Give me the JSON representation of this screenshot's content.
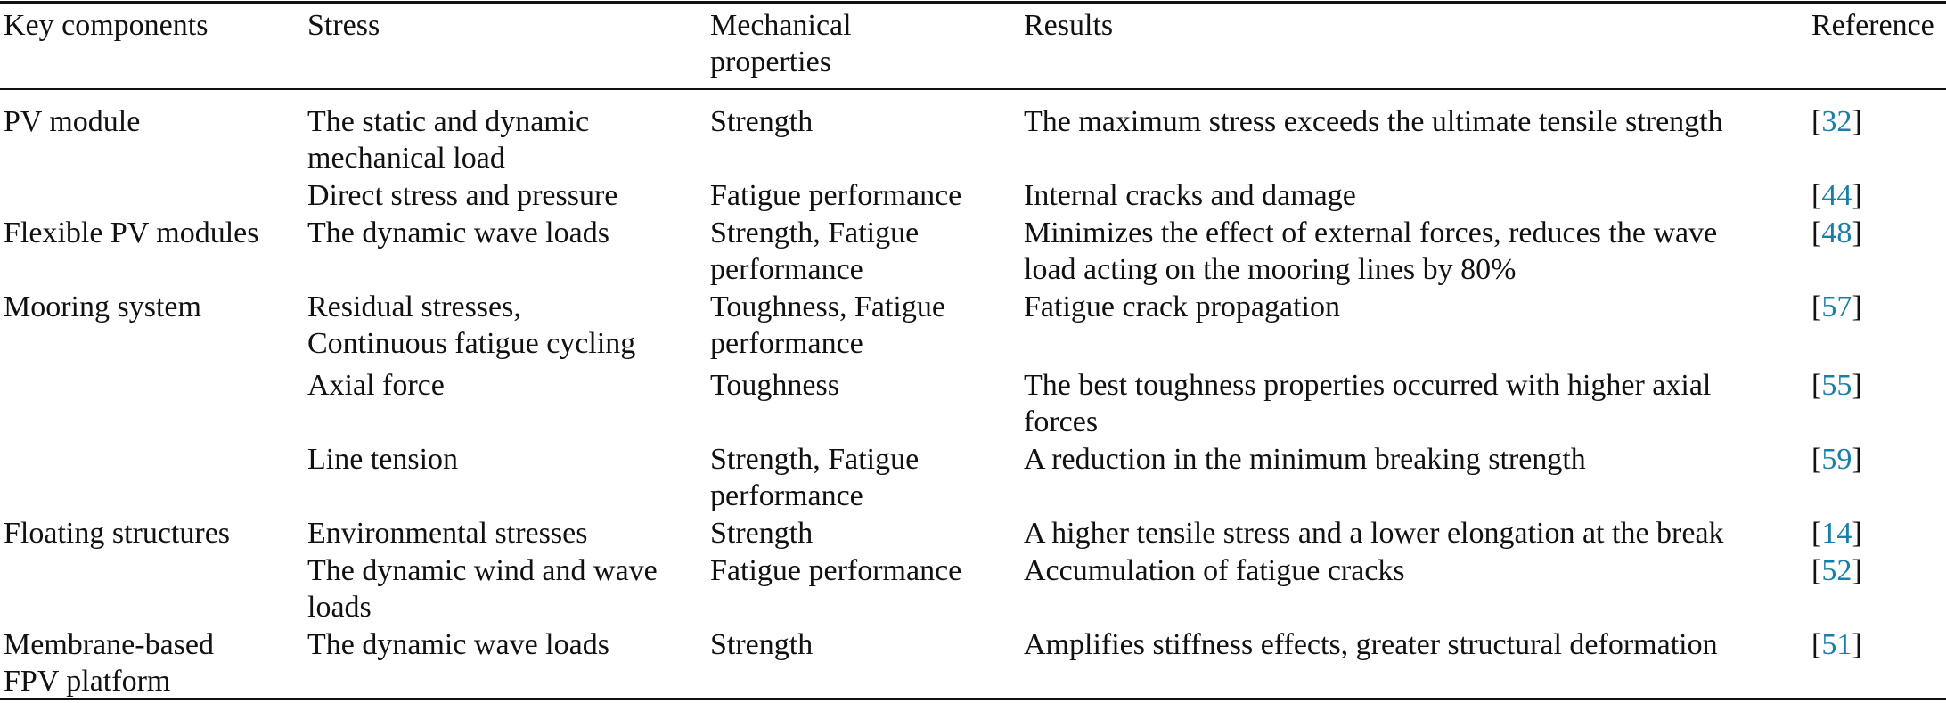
{
  "table": {
    "headers": [
      [
        "Key components"
      ],
      [
        "Stress"
      ],
      [
        "Mechanical",
        "properties"
      ],
      [
        "Results"
      ],
      [
        "Reference"
      ]
    ],
    "rows": [
      {
        "component": [
          "PV module"
        ],
        "stress": [
          "The static and dynamic",
          "mechanical load"
        ],
        "properties": [
          "Strength"
        ],
        "results": [
          "The maximum stress exceeds the ultimate tensile strength"
        ],
        "ref": "32"
      },
      {
        "component": [],
        "stress": [
          "Direct stress and pressure"
        ],
        "properties": [
          "Fatigue performance"
        ],
        "results": [
          "Internal cracks and damage"
        ],
        "ref": "44"
      },
      {
        "component": [
          "Flexible PV modules"
        ],
        "stress": [
          "The dynamic wave loads"
        ],
        "properties": [
          "Strength, Fatigue",
          "performance"
        ],
        "results": [
          "Minimizes the effect of external forces, reduces the wave",
          "load acting on the mooring lines by 80%"
        ],
        "ref": "48"
      },
      {
        "component": [
          "Mooring system"
        ],
        "stress": [
          "Residual stresses,",
          "Continuous fatigue cycling"
        ],
        "properties": [
          "Toughness, Fatigue",
          "performance"
        ],
        "results": [
          "Fatigue crack propagation"
        ],
        "ref": "57"
      },
      {
        "component": [],
        "stress": [
          "Axial force"
        ],
        "properties": [
          "Toughness"
        ],
        "results": [
          "The best toughness properties occurred with higher axial",
          "forces"
        ],
        "ref": "55"
      },
      {
        "component": [],
        "stress": [
          "Line tension"
        ],
        "properties": [
          "Strength, Fatigue",
          "performance"
        ],
        "results": [
          "A reduction in the minimum breaking strength"
        ],
        "ref": "59"
      },
      {
        "component": [
          "Floating structures"
        ],
        "stress": [
          "Environmental stresses"
        ],
        "properties": [
          "Strength"
        ],
        "results": [
          "A higher tensile stress and a lower elongation at the break"
        ],
        "ref": "14"
      },
      {
        "component": [],
        "stress": [
          "The dynamic wind and wave",
          "loads"
        ],
        "properties": [
          "Fatigue performance"
        ],
        "results": [
          "Accumulation of fatigue cracks"
        ],
        "ref": "52"
      },
      {
        "component": [
          "Membrane-based",
          "FPV platform"
        ],
        "stress": [
          "The dynamic wave loads"
        ],
        "properties": [
          "Strength"
        ],
        "results": [
          "Amplifies stiffness effects, greater structural deformation"
        ],
        "ref": "51"
      }
    ]
  },
  "colors": {
    "reference_link": "#1a7fa8",
    "text": "#111111"
  }
}
